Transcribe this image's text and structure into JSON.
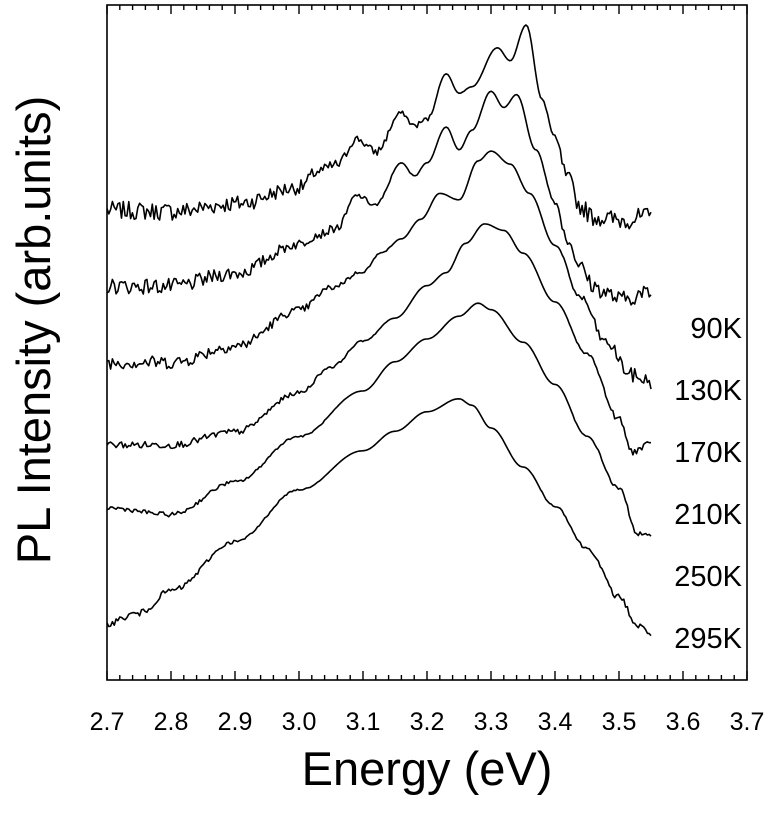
{
  "chart_data": {
    "type": "line",
    "xlabel": "Energy (eV)",
    "ylabel": "PL Intensity (arb.units)",
    "xlim": [
      2.7,
      3.7
    ],
    "x_ticks": [
      "2.7",
      "2.8",
      "2.9",
      "3.0",
      "3.1",
      "3.2",
      "3.3",
      "3.4",
      "3.5",
      "3.6",
      "3.7"
    ],
    "y_ticks": "none",
    "grid": false,
    "legend": "inline labels at right end of each curve",
    "series": [
      {
        "name": "90K",
        "offset": 5,
        "x": [
          2.7,
          2.8,
          2.9,
          3.0,
          3.03,
          3.06,
          3.09,
          3.12,
          3.16,
          3.18,
          3.2,
          3.23,
          3.25,
          3.27,
          3.31,
          3.33,
          3.355,
          3.38,
          3.4,
          3.42,
          3.44,
          3.46,
          3.5,
          3.55
        ],
        "y": [
          1.1,
          1.08,
          1.2,
          1.45,
          1.7,
          1.8,
          2.2,
          2.0,
          2.6,
          2.4,
          2.5,
          3.2,
          2.9,
          3.0,
          3.6,
          3.4,
          3.95,
          2.8,
          2.2,
          1.6,
          1.15,
          1.0,
          0.95,
          1.0
        ]
      },
      {
        "name": "130K",
        "offset": 4,
        "x": [
          2.7,
          2.8,
          2.9,
          3.0,
          3.03,
          3.06,
          3.09,
          3.12,
          3.16,
          3.18,
          3.2,
          3.23,
          3.25,
          3.27,
          3.3,
          3.32,
          3.34,
          3.37,
          3.4,
          3.42,
          3.44,
          3.46,
          3.48,
          3.5,
          3.55
        ],
        "y": [
          1.1,
          1.1,
          1.3,
          1.75,
          1.9,
          2.0,
          2.5,
          2.35,
          3.0,
          2.8,
          3.0,
          3.55,
          3.2,
          3.5,
          4.1,
          3.85,
          4.05,
          3.2,
          2.4,
          1.8,
          1.4,
          1.1,
          1.0,
          0.9,
          1.0
        ]
      },
      {
        "name": "170K",
        "offset": 3,
        "x": [
          2.7,
          2.8,
          2.9,
          3.0,
          3.05,
          3.1,
          3.13,
          3.16,
          3.19,
          3.22,
          3.25,
          3.28,
          3.3,
          3.33,
          3.36,
          3.4,
          3.44,
          3.48,
          3.52,
          3.55
        ],
        "y": [
          1.1,
          1.1,
          1.35,
          1.9,
          2.25,
          2.5,
          2.8,
          3.0,
          3.3,
          3.7,
          3.6,
          4.2,
          4.35,
          4.15,
          3.7,
          2.9,
          2.1,
          1.4,
          0.9,
          0.8
        ]
      },
      {
        "name": "210K",
        "offset": 2,
        "x": [
          2.7,
          2.8,
          2.9,
          3.0,
          3.05,
          3.1,
          3.15,
          3.2,
          3.23,
          3.26,
          3.29,
          3.32,
          3.35,
          3.4,
          3.45,
          3.5,
          3.52,
          3.55
        ],
        "y": [
          1.0,
          1.0,
          1.2,
          1.8,
          2.2,
          2.6,
          2.95,
          3.45,
          3.65,
          4.1,
          4.4,
          4.3,
          3.95,
          3.2,
          2.4,
          1.4,
          0.9,
          1.0
        ]
      },
      {
        "name": "250K",
        "offset": 1,
        "x": [
          2.7,
          2.8,
          2.9,
          3.0,
          3.1,
          3.15,
          3.2,
          3.25,
          3.28,
          3.3,
          3.35,
          3.4,
          3.45,
          3.5,
          3.53,
          3.55
        ],
        "y": [
          1.2,
          1.1,
          1.6,
          2.3,
          3.0,
          3.45,
          3.8,
          4.15,
          4.35,
          4.25,
          3.75,
          3.1,
          2.3,
          1.5,
          0.8,
          0.75
        ]
      },
      {
        "name": "295K",
        "offset": 0,
        "x": [
          2.7,
          2.75,
          2.8,
          2.9,
          3.0,
          3.1,
          3.15,
          3.2,
          3.25,
          3.27,
          3.3,
          3.35,
          3.4,
          3.45,
          3.5,
          3.53,
          3.55
        ],
        "y": [
          0.6,
          0.75,
          1.1,
          1.85,
          2.65,
          3.25,
          3.55,
          3.85,
          4.05,
          3.95,
          3.6,
          3.0,
          2.4,
          1.75,
          1.0,
          0.55,
          0.45
        ]
      }
    ]
  }
}
